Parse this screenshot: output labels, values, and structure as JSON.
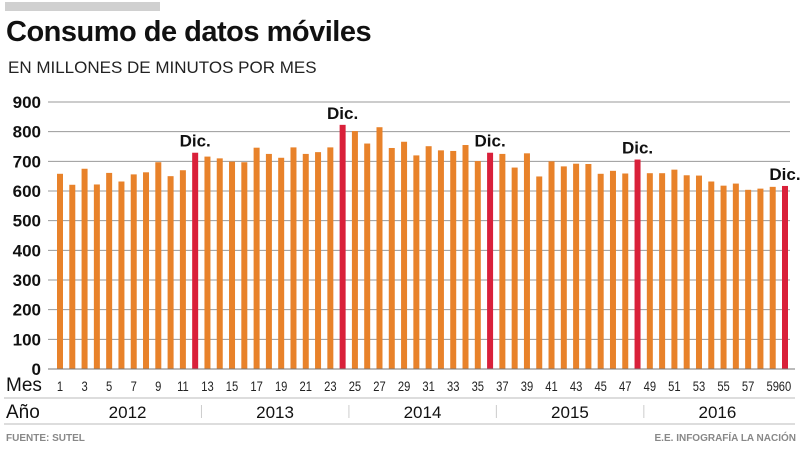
{
  "title": "Consumo de datos móviles",
  "subtitle": "EN MILLONES DE MINUTOS POR MES",
  "footer": {
    "source": "FUENTE: SUTEL",
    "credit": "E.E. INFOGRAFÍA LA NACIÓN"
  },
  "colors": {
    "bar": "#e8822a",
    "highlight": "#d9203a",
    "grid": "#999999"
  },
  "chart_data": {
    "type": "bar",
    "title": "Consumo de datos móviles",
    "subtitle": "EN MILLONES DE MINUTOS POR MES",
    "xlabel": "Mes",
    "year_label": "Año",
    "ylim": [
      0,
      900
    ],
    "yticks": [
      0,
      100,
      200,
      300,
      400,
      500,
      600,
      700,
      800,
      900
    ],
    "xtick_labels": [
      "1",
      "3",
      "5",
      "7",
      "9",
      "11",
      "13",
      "15",
      "17",
      "19",
      "21",
      "23",
      "25",
      "27",
      "29",
      "31",
      "33",
      "35",
      "37",
      "39",
      "41",
      "43",
      "45",
      "47",
      "49",
      "51",
      "53",
      "55",
      "57",
      "59",
      "60"
    ],
    "xtick_positions": [
      1,
      3,
      5,
      7,
      9,
      11,
      13,
      15,
      17,
      19,
      21,
      23,
      25,
      27,
      29,
      31,
      33,
      35,
      37,
      39,
      41,
      43,
      45,
      47,
      49,
      51,
      53,
      55,
      57,
      59,
      60
    ],
    "years": [
      "2012",
      "2013",
      "2014",
      "2015",
      "2016"
    ],
    "months": [
      1,
      2,
      3,
      4,
      5,
      6,
      7,
      8,
      9,
      10,
      11,
      12,
      13,
      14,
      15,
      16,
      17,
      18,
      19,
      20,
      21,
      22,
      23,
      24,
      25,
      26,
      27,
      28,
      29,
      30,
      31,
      32,
      33,
      34,
      35,
      36,
      37,
      38,
      39,
      40,
      41,
      42,
      43,
      44,
      45,
      46,
      47,
      48,
      49,
      50,
      51,
      52,
      53,
      54,
      55,
      56,
      57,
      58,
      59,
      60
    ],
    "values": [
      658,
      621,
      675,
      622,
      661,
      632,
      656,
      663,
      697,
      650,
      670,
      729,
      716,
      710,
      699,
      697,
      746,
      725,
      712,
      747,
      725,
      731,
      747,
      823,
      802,
      760,
      815,
      745,
      766,
      720,
      751,
      737,
      735,
      755,
      701,
      729,
      725,
      679,
      727,
      649,
      700,
      683,
      692,
      691,
      658,
      668,
      659,
      706,
      660,
      660,
      672,
      653,
      652,
      632,
      618,
      625,
      604,
      608,
      614,
      617
    ],
    "highlighted": [
      12,
      24,
      36,
      48,
      60
    ],
    "annotation": "Dic.",
    "grid": true
  }
}
